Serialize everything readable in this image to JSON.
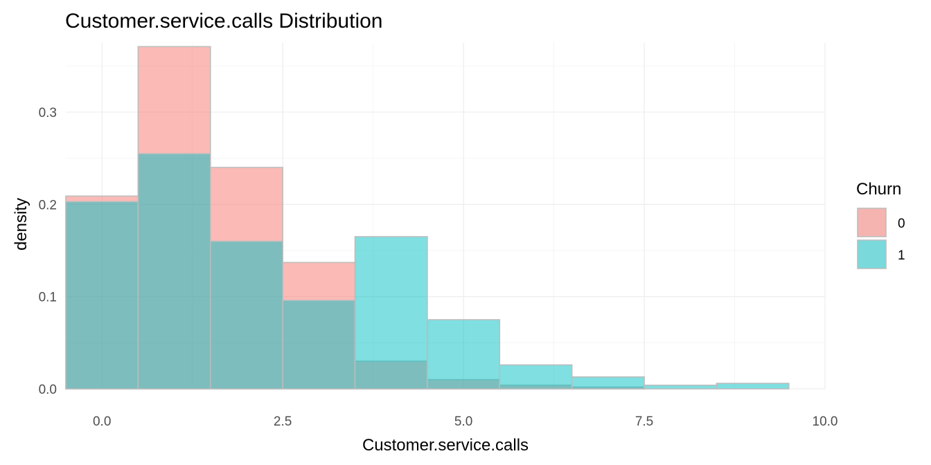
{
  "chart_data": {
    "type": "bar",
    "title": "Customer.service.calls Distribution",
    "xlabel": "Customer.service.calls",
    "ylabel": "density",
    "xlim": [
      -0.5,
      10
    ],
    "ylim": [
      0,
      0.375
    ],
    "x_ticks": [
      0,
      2.5,
      5,
      7.5,
      10
    ],
    "x_tick_labels": [
      "0.0",
      "2.5",
      "5.0",
      "7.5",
      "10.0"
    ],
    "y_ticks": [
      0,
      0.1,
      0.2,
      0.3
    ],
    "y_tick_labels": [
      "0.0",
      "0.1",
      "0.2",
      "0.3"
    ],
    "bins": [
      0,
      1,
      2,
      3,
      4,
      5,
      6,
      7,
      8,
      9
    ],
    "bin_width": 1,
    "grid": true,
    "legend": {
      "title": "Churn",
      "position": "right"
    },
    "series": [
      {
        "name": "0",
        "color": "#F8766D",
        "values": [
          0.209,
          0.371,
          0.24,
          0.137,
          0.03,
          0.01,
          0.004,
          0.002,
          0,
          0
        ]
      },
      {
        "name": "1",
        "color": "#00BFC4",
        "values": [
          0.203,
          0.255,
          0.16,
          0.096,
          0.165,
          0.075,
          0.026,
          0.013,
          0.004,
          0.006
        ]
      }
    ]
  }
}
